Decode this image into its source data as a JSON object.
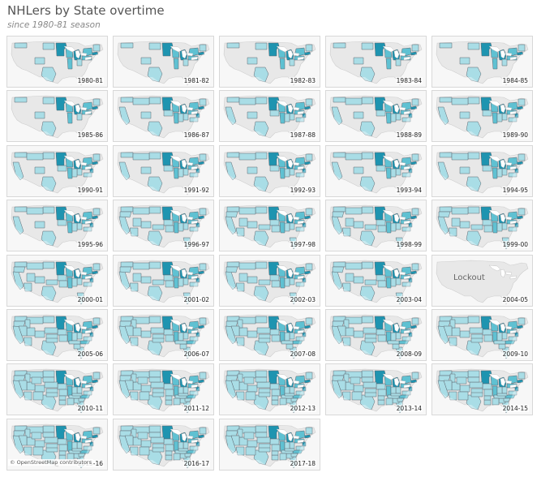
{
  "title": "NHLers by State overtime",
  "subtitle": "since 1980-81 season",
  "attribution": "© OpenStreetMap contributors",
  "lockout_label": "Lockout",
  "colors": {
    "land": "#e8e8e8",
    "light": "#a9dde6",
    "medium": "#5fc1d2",
    "dark": "#1e94b0",
    "border": "#5c6770"
  },
  "map_data": {
    "panels": [
      {
        "season": "1980-81",
        "lockout": false,
        "intensity": 1
      },
      {
        "season": "1981-82",
        "lockout": false,
        "intensity": 1
      },
      {
        "season": "1982-83",
        "lockout": false,
        "intensity": 1
      },
      {
        "season": "1983-84",
        "lockout": false,
        "intensity": 1
      },
      {
        "season": "1984-85",
        "lockout": false,
        "intensity": 1
      },
      {
        "season": "1985-86",
        "lockout": false,
        "intensity": 1
      },
      {
        "season": "1986-87",
        "lockout": false,
        "intensity": 2
      },
      {
        "season": "1987-88",
        "lockout": false,
        "intensity": 2
      },
      {
        "season": "1988-89",
        "lockout": false,
        "intensity": 2
      },
      {
        "season": "1989-90",
        "lockout": false,
        "intensity": 2
      },
      {
        "season": "1990-91",
        "lockout": false,
        "intensity": 2
      },
      {
        "season": "1991-92",
        "lockout": false,
        "intensity": 2
      },
      {
        "season": "1992-93",
        "lockout": false,
        "intensity": 2
      },
      {
        "season": "1993-94",
        "lockout": false,
        "intensity": 2
      },
      {
        "season": "1994-95",
        "lockout": false,
        "intensity": 2
      },
      {
        "season": "1995-96",
        "lockout": false,
        "intensity": 2
      },
      {
        "season": "1996-97",
        "lockout": false,
        "intensity": 3
      },
      {
        "season": "1997-98",
        "lockout": false,
        "intensity": 3
      },
      {
        "season": "1998-99",
        "lockout": false,
        "intensity": 3
      },
      {
        "season": "1999-00",
        "lockout": false,
        "intensity": 3
      },
      {
        "season": "2000-01",
        "lockout": false,
        "intensity": 3
      },
      {
        "season": "2001-02",
        "lockout": false,
        "intensity": 3
      },
      {
        "season": "2002-03",
        "lockout": false,
        "intensity": 3
      },
      {
        "season": "2003-04",
        "lockout": false,
        "intensity": 3
      },
      {
        "season": "2004-05",
        "lockout": true,
        "intensity": 0
      },
      {
        "season": "2005-06",
        "lockout": false,
        "intensity": 4
      },
      {
        "season": "2006-07",
        "lockout": false,
        "intensity": 4
      },
      {
        "season": "2007-08",
        "lockout": false,
        "intensity": 4
      },
      {
        "season": "2008-09",
        "lockout": false,
        "intensity": 4
      },
      {
        "season": "2009-10",
        "lockout": false,
        "intensity": 4
      },
      {
        "season": "2010-11",
        "lockout": false,
        "intensity": 5
      },
      {
        "season": "2011-12",
        "lockout": false,
        "intensity": 5
      },
      {
        "season": "2012-13",
        "lockout": false,
        "intensity": 5
      },
      {
        "season": "2013-14",
        "lockout": false,
        "intensity": 5
      },
      {
        "season": "2014-15",
        "lockout": false,
        "intensity": 5
      },
      {
        "season": "2015-16",
        "lockout": false,
        "intensity": 5
      },
      {
        "season": "2016-17",
        "lockout": false,
        "intensity": 5
      },
      {
        "season": "2017-18",
        "lockout": false,
        "intensity": 5
      }
    ]
  }
}
